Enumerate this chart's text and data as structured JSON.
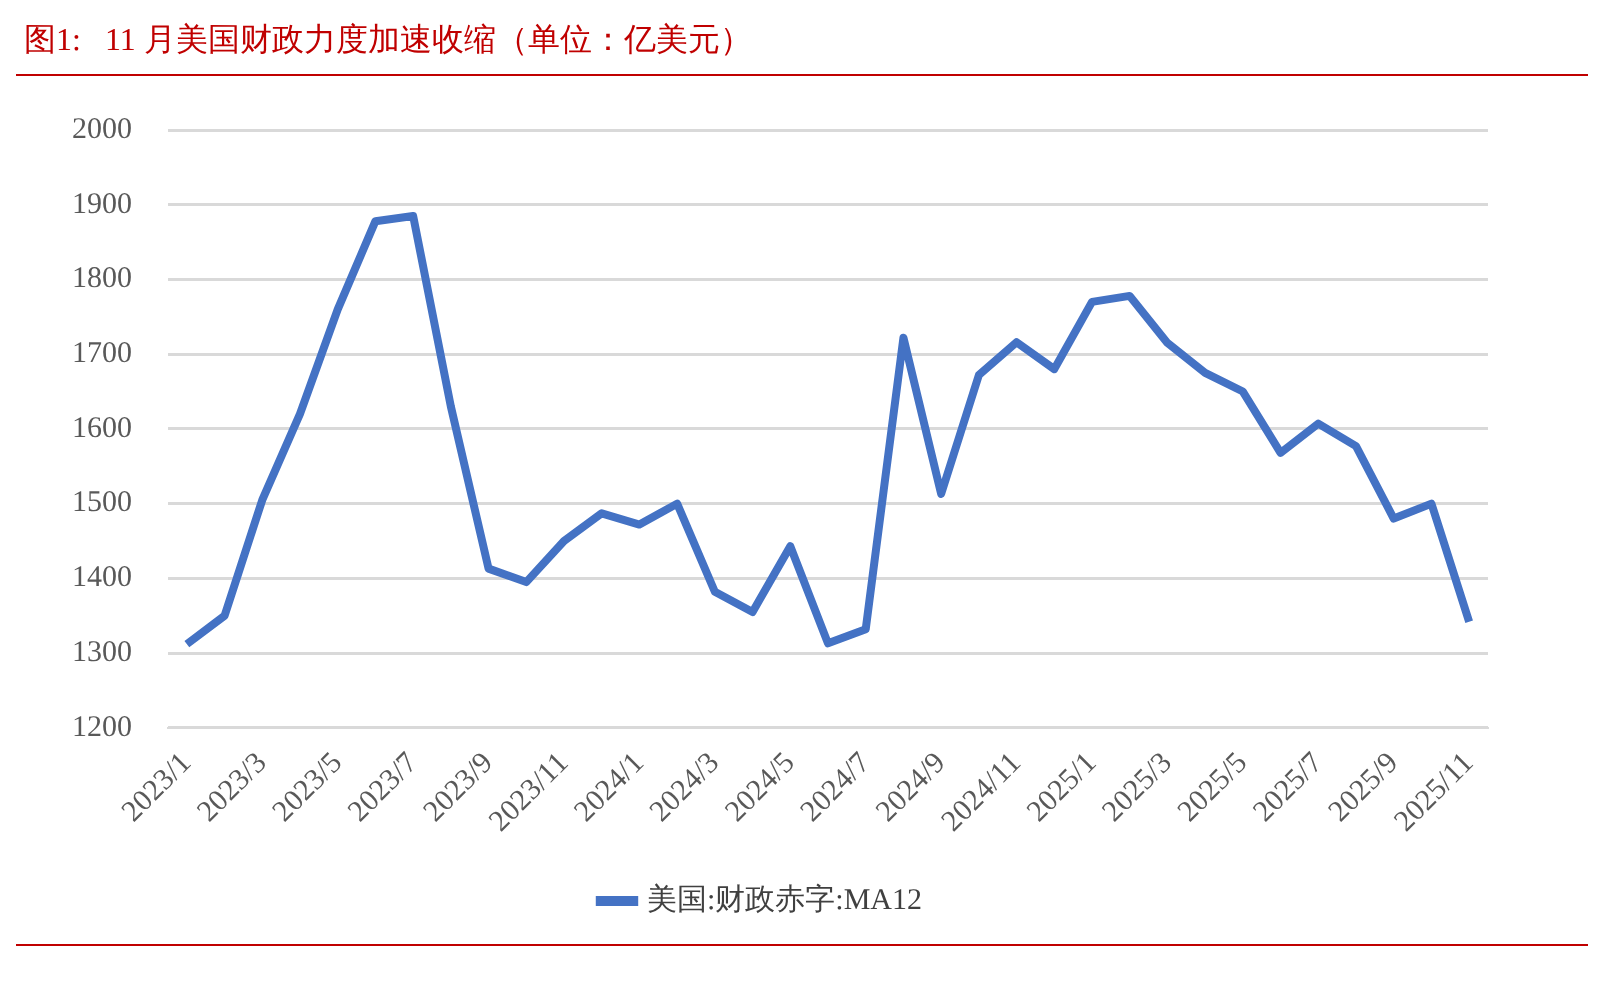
{
  "chart_data": {
    "type": "line",
    "title": "图1:   11 月美国财政力度加速收缩（单位：亿美元）",
    "categories": [
      "2023/1",
      null,
      "2023/3",
      null,
      "2023/5",
      null,
      "2023/7",
      null,
      "2023/9",
      null,
      "2023/11",
      null,
      "2024/1",
      null,
      "2024/3",
      null,
      "2024/5",
      null,
      "2024/7",
      null,
      "2024/9",
      null,
      "2024/11",
      null,
      "2025/1",
      null,
      "2025/3",
      null,
      "2025/5",
      null,
      "2025/7",
      null,
      "2025/9",
      null,
      "2025/11"
    ],
    "series": [
      {
        "name": "美国:财政赤字:MA12",
        "color": "#4472c4",
        "values": [
          1312,
          1350,
          1505,
          1620,
          1760,
          1878,
          1885,
          1630,
          1413,
          1395,
          1450,
          1487,
          1472,
          1500,
          1382,
          1355,
          1443,
          1313,
          1332,
          1722,
          1513,
          1672,
          1716,
          1680,
          1770,
          1778,
          1715,
          1675,
          1650,
          1568,
          1607,
          1577,
          1480,
          1500,
          1342
        ]
      }
    ],
    "ylim": [
      1200,
      2000
    ],
    "yticks": [
      1200,
      1300,
      1400,
      1500,
      1600,
      1700,
      1800,
      1900,
      2000
    ],
    "grid": "y",
    "legend": "bottom",
    "marker": "none",
    "line_style": "solid"
  }
}
